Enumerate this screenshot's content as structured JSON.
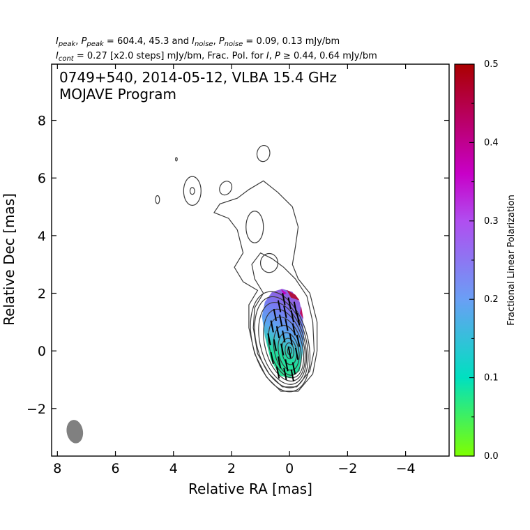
{
  "header": {
    "line1": {
      "i_sym": "I",
      "i_sub": "peak",
      "sep1": ", ",
      "p_sym": "P",
      "p_sub": "peak",
      "values": " = 604.4, 45.3 and ",
      "in_sym": "I",
      "in_sub": "noise",
      "sep2": ", ",
      "pn_sym": "P",
      "pn_sub": "noise",
      "tail": " = 0.09, 0.13 mJy/bm"
    },
    "line2": {
      "ic_sym": "I",
      "ic_sub": "cont",
      "mid": " = 0.27 [x2.0 steps] mJy/bm, Frac. Pol. for ",
      "i2": "I",
      "comma": ", ",
      "p2": "P",
      "tail": " ≥ 0.44, 0.64 mJy/bm"
    }
  },
  "chart_data": {
    "type": "contour",
    "source_label": "0749+540, 2014-05-12, VLBA 15.4 GHz",
    "program_label": "MOJAVE Program",
    "xlabel": "Relative RA [mas]",
    "ylabel": "Relative Dec [mas]",
    "xlim": [
      8.2,
      -5.5
    ],
    "ylim": [
      -3.65,
      9.95
    ],
    "xticks": [
      8,
      6,
      4,
      2,
      0,
      -2,
      -4
    ],
    "xtick_labels": [
      "8",
      "6",
      "4",
      "2",
      "0",
      "−2",
      "−4"
    ],
    "yticks": [
      -2,
      0,
      2,
      4,
      6,
      8
    ],
    "ytick_labels": [
      "−2",
      "0",
      "2",
      "4",
      "6",
      "8"
    ],
    "stokes_i": {
      "peak_mjy_per_beam": 604.4,
      "noise_mjy_per_beam": 0.09,
      "lowest_contour_mjy_per_beam": 0.27,
      "contour_step_factor": 2.0
    },
    "polarization": {
      "peak_mjy_per_beam": 45.3,
      "noise_mjy_per_beam": 0.13,
      "cutoff_i_mjy_per_beam": 0.44,
      "cutoff_p_mjy_per_beam": 0.64
    },
    "core": {
      "ra": 0.0,
      "dec": 0.0
    },
    "beam": {
      "ra": 7.4,
      "dec": -2.8,
      "major_mas": 0.82,
      "minor_mas": 0.56,
      "pa_deg": -10,
      "color": "#808080"
    },
    "contour_color": "#3a3a3a",
    "colorbar": {
      "label": "Fractional Linear Polarization",
      "range": [
        0.0,
        0.5
      ],
      "major_ticks": [
        0.0,
        0.1,
        0.2,
        0.3,
        0.4,
        0.5
      ],
      "major_labels": [
        "0.0",
        "0.1",
        "0.2",
        "0.3",
        "0.4",
        "0.5"
      ],
      "minor_ticks": [
        0.05,
        0.15,
        0.25,
        0.35,
        0.45
      ],
      "colormap": [
        "#7fff00",
        "#00e0c0",
        "#6a9ff5",
        "#c800c8",
        "#aa0000"
      ]
    }
  }
}
